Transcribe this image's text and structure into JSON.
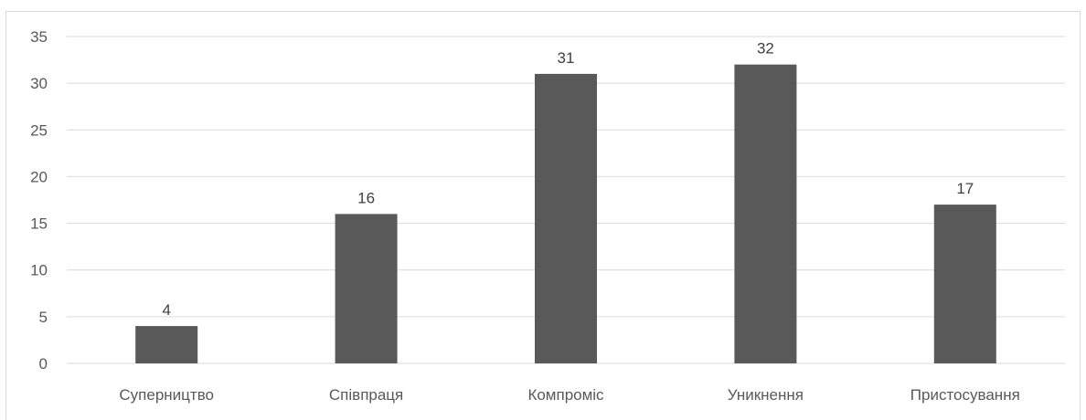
{
  "chart_data": {
    "type": "bar",
    "categories": [
      "Суперництво",
      "Співпраця",
      "Компроміс",
      "Уникнення",
      "Пристосування"
    ],
    "values": [
      4,
      16,
      31,
      32,
      17
    ],
    "title": "",
    "xlabel": "",
    "ylabel": "",
    "ylim": [
      0,
      35
    ],
    "yticks": [
      0,
      5,
      10,
      15,
      20,
      25,
      30,
      35
    ],
    "grid": true,
    "legend": "none",
    "bar_color": "#595959",
    "gridline_color": "#d9d9d9"
  }
}
